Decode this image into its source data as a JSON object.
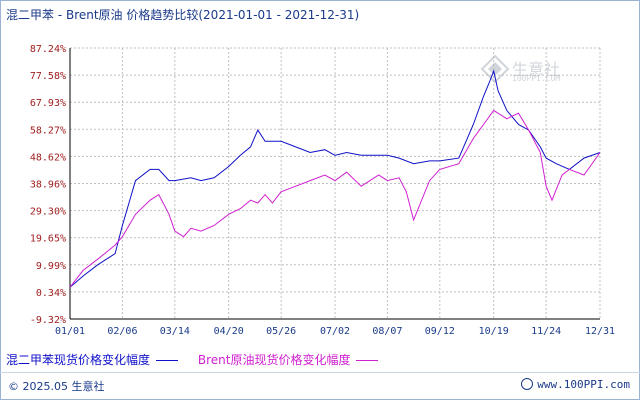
{
  "title": "混二甲苯 - Brent原油 价格趋势比较(2021-01-01 - 2021-12-31)",
  "footer": {
    "copyright": "© 2025.05 生意社",
    "site": "www.100PPI.com"
  },
  "watermark": {
    "brand": "生意社",
    "url": "100PPI.COM"
  },
  "colors": {
    "series1": "#1010c8",
    "series2": "#d020d0",
    "grid": "#c0c0c0",
    "axis": "#000000",
    "text": "#1a3a8a"
  },
  "chart_data": {
    "type": "line",
    "x_tick_labels": [
      "01/01",
      "02/06",
      "03/14",
      "04/20",
      "05/26",
      "07/02",
      "08/07",
      "09/12",
      "10/19",
      "11/24",
      "12/31"
    ],
    "y_tick_labels": [
      "87.24%",
      "77.58%",
      "67.93%",
      "58.27%",
      "48.62%",
      "38.96%",
      "29.30%",
      "19.65%",
      "9.99%",
      "0.34%",
      "-9.32%"
    ],
    "ylim": [
      -9.32,
      87.24
    ],
    "grid": true,
    "legend_position": "bottom",
    "series": [
      {
        "name": "混二甲苯现货价格变化幅度",
        "color": "#1010c8",
        "x": [
          "2021-01-01",
          "2021-01-10",
          "2021-01-20",
          "2021-02-01",
          "2021-02-06",
          "2021-02-15",
          "2021-02-25",
          "2021-03-03",
          "2021-03-10",
          "2021-03-14",
          "2021-03-25",
          "2021-04-01",
          "2021-04-10",
          "2021-04-20",
          "2021-04-28",
          "2021-05-05",
          "2021-05-10",
          "2021-05-15",
          "2021-05-20",
          "2021-05-26",
          "2021-06-05",
          "2021-06-15",
          "2021-06-25",
          "2021-07-02",
          "2021-07-10",
          "2021-07-20",
          "2021-08-01",
          "2021-08-07",
          "2021-08-15",
          "2021-08-25",
          "2021-09-05",
          "2021-09-12",
          "2021-09-25",
          "2021-10-05",
          "2021-10-12",
          "2021-10-16",
          "2021-10-19",
          "2021-10-22",
          "2021-10-28",
          "2021-11-05",
          "2021-11-12",
          "2021-11-20",
          "2021-11-24",
          "2021-12-01",
          "2021-12-10",
          "2021-12-20",
          "2021-12-31"
        ],
        "y": [
          2,
          6,
          10,
          14,
          24,
          40,
          44,
          44,
          40,
          40,
          41,
          40,
          41,
          45,
          49,
          52,
          58,
          54,
          54,
          54,
          52,
          50,
          51,
          49,
          50,
          49,
          49,
          49,
          48,
          46,
          47,
          47,
          48,
          60,
          70,
          75,
          79,
          72,
          65,
          60,
          58,
          52,
          48,
          46,
          44,
          48,
          50
        ]
      },
      {
        "name": "Brent原油现货价格变化幅度",
        "color": "#d020d0",
        "x": [
          "2021-01-01",
          "2021-01-10",
          "2021-01-20",
          "2021-02-01",
          "2021-02-06",
          "2021-02-15",
          "2021-02-25",
          "2021-03-03",
          "2021-03-10",
          "2021-03-14",
          "2021-03-20",
          "2021-03-25",
          "2021-04-01",
          "2021-04-10",
          "2021-04-20",
          "2021-04-28",
          "2021-05-05",
          "2021-05-10",
          "2021-05-15",
          "2021-05-20",
          "2021-05-26",
          "2021-06-05",
          "2021-06-15",
          "2021-06-25",
          "2021-07-02",
          "2021-07-10",
          "2021-07-20",
          "2021-08-01",
          "2021-08-07",
          "2021-08-15",
          "2021-08-20",
          "2021-08-25",
          "2021-09-05",
          "2021-09-12",
          "2021-09-25",
          "2021-10-05",
          "2021-10-12",
          "2021-10-19",
          "2021-10-28",
          "2021-11-05",
          "2021-11-12",
          "2021-11-20",
          "2021-11-24",
          "2021-11-28",
          "2021-12-05",
          "2021-12-10",
          "2021-12-20",
          "2021-12-31"
        ],
        "y": [
          2,
          8,
          12,
          17,
          20,
          28,
          33,
          35,
          28,
          22,
          20,
          23,
          22,
          24,
          28,
          30,
          33,
          32,
          35,
          32,
          36,
          38,
          40,
          42,
          40,
          43,
          38,
          42,
          40,
          41,
          36,
          26,
          40,
          44,
          46,
          55,
          60,
          65,
          62,
          64,
          58,
          50,
          38,
          33,
          42,
          44,
          42,
          50
        ]
      }
    ]
  }
}
